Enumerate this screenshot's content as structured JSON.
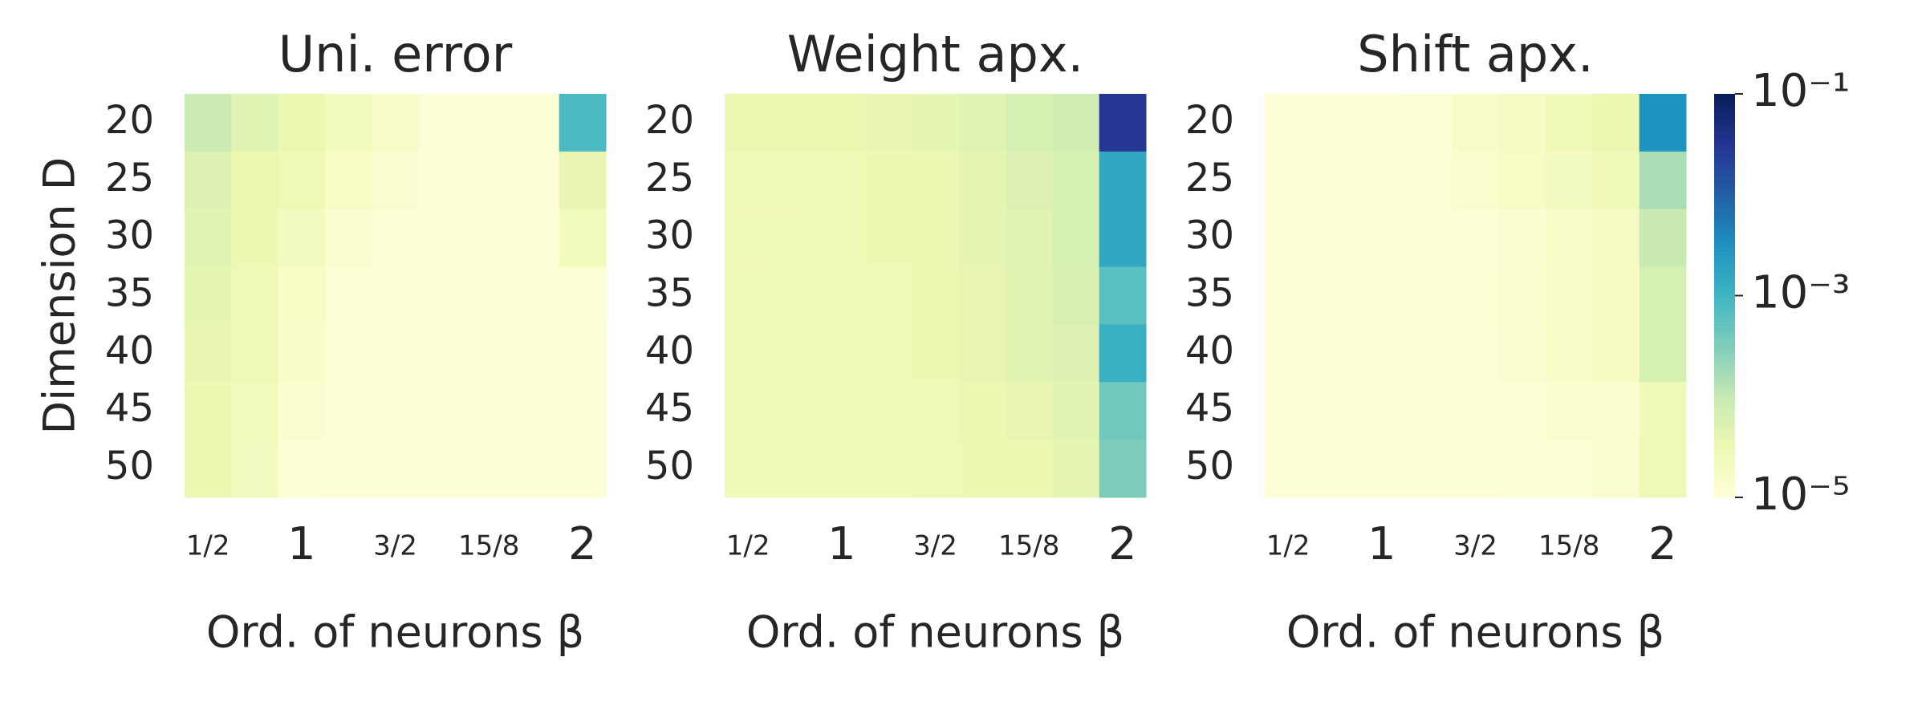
{
  "chart_data": [
    {
      "type": "heatmap",
      "title": "Uni. error",
      "xlabel": "Ord. of neurons β",
      "ylabel": "Dimension D",
      "x": [
        "1/2",
        null,
        "1",
        null,
        "3/2",
        null,
        "15/8",
        null,
        "2"
      ],
      "y": [
        20,
        25,
        30,
        35,
        40,
        45,
        50
      ],
      "values": [
        [
          8.3e-05,
          4.8e-05,
          3.3e-05,
          2.3e-05,
          1.6e-05,
          1.1e-05,
          1.1e-05,
          1.1e-05,
          0.00083
        ],
        [
          5.2e-05,
          3.3e-05,
          2.8e-05,
          1.7e-05,
          1.3e-05,
          1.1e-05,
          1.1e-05,
          1.1e-05,
          3.6e-05
        ],
        [
          4.4e-05,
          3e-05,
          2.1e-05,
          1.4e-05,
          1.2e-05,
          1.1e-05,
          1.1e-05,
          1.1e-05,
          2.3e-05
        ],
        [
          4e-05,
          2.8e-05,
          1.7e-05,
          1.2e-05,
          1.1e-05,
          1.1e-05,
          1.1e-05,
          1.1e-05,
          1.2e-05
        ],
        [
          3.6e-05,
          2.8e-05,
          1.6e-05,
          1.2e-05,
          1.1e-05,
          1.1e-05,
          1.1e-05,
          1.1e-05,
          1.1e-05
        ],
        [
          3e-05,
          2.3e-05,
          1.3e-05,
          1.1e-05,
          1.1e-05,
          1.1e-05,
          1.1e-05,
          1.1e-05,
          1.1e-05
        ],
        [
          3e-05,
          2.1e-05,
          1.2e-05,
          1.1e-05,
          1.1e-05,
          1.1e-05,
          1.1e-05,
          1.1e-05,
          1.1e-05
        ]
      ]
    },
    {
      "type": "heatmap",
      "title": "Weight apx.",
      "xlabel": "Ord. of neurons β",
      "x": [
        "1/2",
        null,
        "1",
        null,
        "3/2",
        null,
        "15/8",
        null,
        "2"
      ],
      "y": [
        20,
        25,
        30,
        35,
        40,
        45,
        50
      ],
      "values": [
        [
          3.3e-05,
          3.3e-05,
          3.3e-05,
          3.6e-05,
          4e-05,
          4.8e-05,
          6.3e-05,
          7.6e-05,
          0.03
        ],
        [
          2.5e-05,
          2.5e-05,
          2.8e-05,
          3e-05,
          3.3e-05,
          4e-05,
          5.2e-05,
          6.3e-05,
          0.0016
        ],
        [
          2.5e-05,
          2.5e-05,
          2.8e-05,
          3e-05,
          3.3e-05,
          4e-05,
          4.8e-05,
          6.3e-05,
          0.0016
        ],
        [
          2.5e-05,
          2.8e-05,
          2.8e-05,
          2.8e-05,
          3e-05,
          3.6e-05,
          4.4e-05,
          5.8e-05,
          0.00063
        ],
        [
          2.5e-05,
          2.5e-05,
          2.5e-05,
          2.5e-05,
          3e-05,
          3.6e-05,
          4.4e-05,
          5.2e-05,
          0.0012
        ],
        [
          2.5e-05,
          2.5e-05,
          2.5e-05,
          2.5e-05,
          2.8e-05,
          3.3e-05,
          3.6e-05,
          4.4e-05,
          0.0004
        ],
        [
          2.5e-05,
          2.5e-05,
          2.5e-05,
          2.5e-05,
          2.8e-05,
          3e-05,
          3.3e-05,
          4e-05,
          0.00033
        ]
      ]
    },
    {
      "type": "heatmap",
      "title": "Shift apx.",
      "xlabel": "Ord. of neurons β",
      "x": [
        "1/2",
        null,
        "1",
        null,
        "3/2",
        null,
        "15/8",
        null,
        "2"
      ],
      "y": [
        20,
        25,
        30,
        35,
        40,
        45,
        50
      ],
      "values": [
        [
          1.1e-05,
          1.1e-05,
          1.1e-05,
          1.2e-05,
          1.6e-05,
          1.9e-05,
          2.5e-05,
          3.3e-05,
          0.003
        ],
        [
          1.1e-05,
          1.1e-05,
          1.1e-05,
          1.2e-05,
          1.4e-05,
          1.7e-05,
          2.1e-05,
          2.5e-05,
          0.00016
        ],
        [
          1.1e-05,
          1.1e-05,
          1.1e-05,
          1.1e-05,
          1.2e-05,
          1.3e-05,
          1.6e-05,
          1.9e-05,
          9e-05
        ],
        [
          1.1e-05,
          1.1e-05,
          1.1e-05,
          1.1e-05,
          1.2e-05,
          1.4e-05,
          1.6e-05,
          1.9e-05,
          6.3e-05
        ],
        [
          1.1e-05,
          1.1e-05,
          1.1e-05,
          1.1e-05,
          1.2e-05,
          1.3e-05,
          1.6e-05,
          1.9e-05,
          6.3e-05
        ],
        [
          1.1e-05,
          1.1e-05,
          1.1e-05,
          1.1e-05,
          1.1e-05,
          1.2e-05,
          1.3e-05,
          1.4e-05,
          2.5e-05
        ],
        [
          1.1e-05,
          1.1e-05,
          1.1e-05,
          1.1e-05,
          1.1e-05,
          1.2e-05,
          1.2e-05,
          1.3e-05,
          2.8e-05
        ]
      ]
    }
  ],
  "colorbar": {
    "log": true,
    "lim": [
      1e-05,
      0.1
    ],
    "ticks": [
      {
        "value": 1e-05,
        "label": "10⁻⁵"
      },
      {
        "value": 0.001,
        "label": "10⁻³"
      },
      {
        "value": 0.1,
        "label": "10⁻¹"
      }
    ],
    "colors": [
      "#ffffd9",
      "#edf8b1",
      "#c7e9b4",
      "#7fcdbb",
      "#41b6c4",
      "#1d91c0",
      "#225ea8",
      "#253494",
      "#081d58"
    ]
  }
}
